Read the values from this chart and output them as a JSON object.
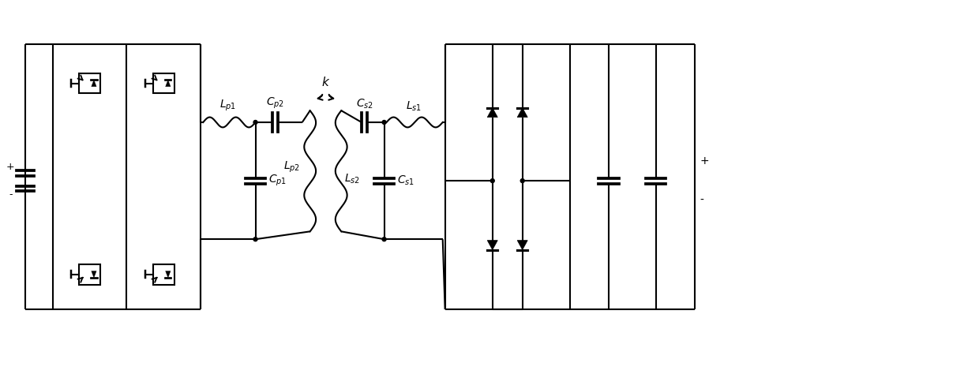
{
  "bg_color": "#ffffff",
  "line_color": "#000000",
  "line_width": 1.5,
  "figsize": [
    12.4,
    4.74
  ],
  "dpi": 100
}
